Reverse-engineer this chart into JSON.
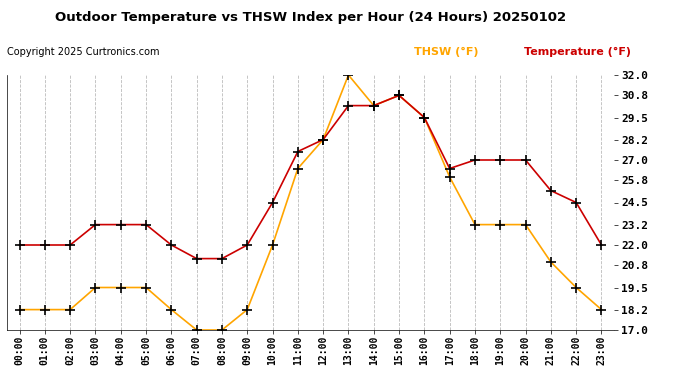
{
  "title": "Outdoor Temperature vs THSW Index per Hour (24 Hours) 20250102",
  "copyright": "Copyright 2025 Curtronics.com",
  "legend_thsw": "THSW (°F)",
  "legend_temp": "Temperature (°F)",
  "hours": [
    "00:00",
    "01:00",
    "02:00",
    "03:00",
    "04:00",
    "05:00",
    "06:00",
    "07:00",
    "08:00",
    "09:00",
    "10:00",
    "11:00",
    "12:00",
    "13:00",
    "14:00",
    "15:00",
    "16:00",
    "17:00",
    "18:00",
    "19:00",
    "20:00",
    "21:00",
    "22:00",
    "23:00"
  ],
  "temperature": [
    22.0,
    22.0,
    22.0,
    23.2,
    23.2,
    23.2,
    22.0,
    21.2,
    21.2,
    22.0,
    24.5,
    27.5,
    28.2,
    30.2,
    30.2,
    30.8,
    29.5,
    26.5,
    27.0,
    27.0,
    27.0,
    25.2,
    24.5,
    22.0
  ],
  "thsw": [
    18.2,
    18.2,
    18.2,
    19.5,
    19.5,
    19.5,
    18.2,
    17.0,
    17.0,
    18.2,
    22.0,
    26.5,
    28.2,
    32.0,
    30.2,
    30.8,
    29.5,
    26.0,
    23.2,
    23.2,
    23.2,
    21.0,
    19.5,
    18.2
  ],
  "ylim": [
    17.0,
    32.0
  ],
  "yticks": [
    17.0,
    18.2,
    19.5,
    20.8,
    22.0,
    23.2,
    24.5,
    25.8,
    27.0,
    28.2,
    29.5,
    30.8,
    32.0
  ],
  "thsw_color": "#FFA500",
  "temp_color": "#CC0000",
  "marker_color": "#000000",
  "bg_color": "#FFFFFF",
  "grid_color": "#BBBBBB",
  "title_color": "#000000",
  "copyright_color": "#000000",
  "legend_thsw_color": "#FFA500",
  "legend_temp_color": "#CC0000"
}
